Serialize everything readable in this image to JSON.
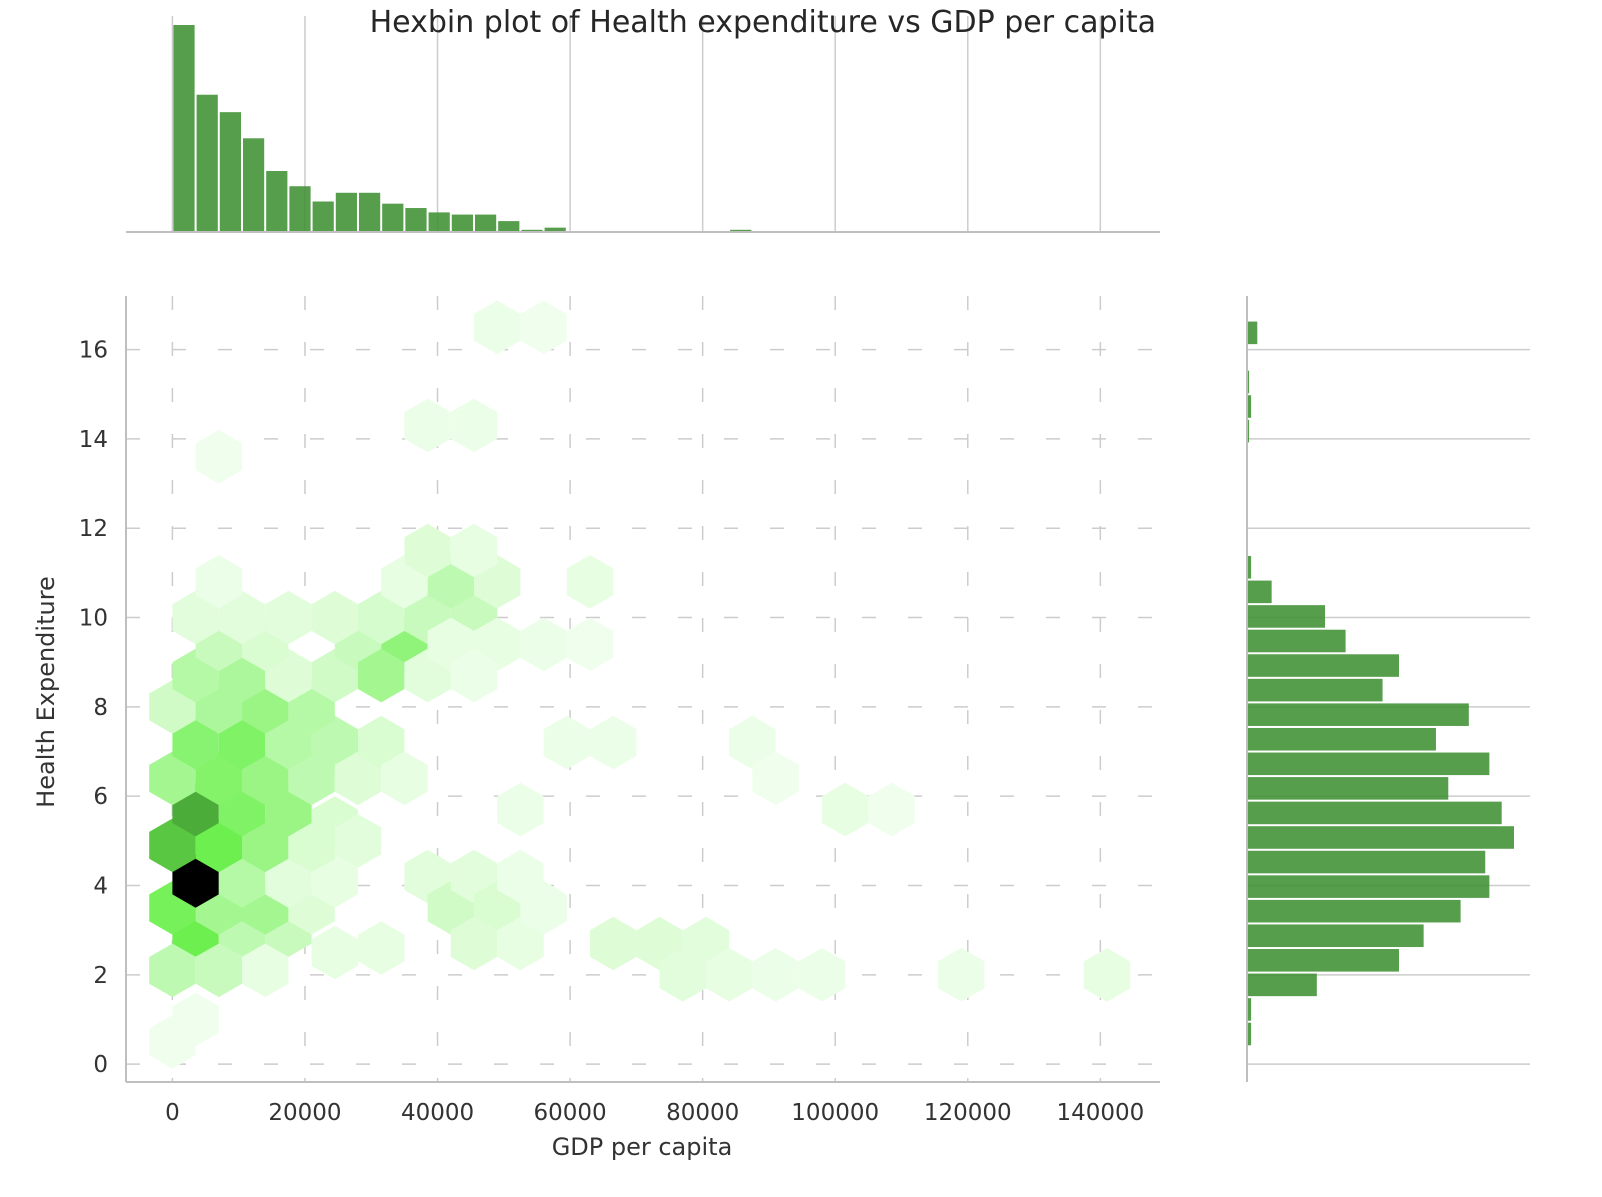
{
  "chart_data": {
    "type": "hexbin",
    "title": "Hexbin plot of Health expenditure vs GDP per capita",
    "xlabel": "GDP per capita",
    "ylabel": "Health Expenditure",
    "xlim": [
      -7000,
      149000
    ],
    "ylim": [
      -0.4,
      17.2
    ],
    "x_ticks": [
      0,
      20000,
      40000,
      60000,
      80000,
      100000,
      120000,
      140000
    ],
    "y_ticks": [
      0,
      2,
      4,
      6,
      8,
      10,
      12,
      14,
      16
    ],
    "x_tick_labels": [
      "0",
      "20000",
      "40000",
      "60000",
      "80000",
      "100000",
      "120000",
      "140000"
    ],
    "y_tick_labels": [
      "0",
      "2",
      "4",
      "6",
      "8",
      "10",
      "12",
      "14",
      "16"
    ],
    "grid": true,
    "hexbin": {
      "gridsize_note": "approximate hexagon grid",
      "max_count": 60,
      "bins": [
        {
          "x": 0,
          "y": 0.5,
          "count": 1
        },
        {
          "x": 3500,
          "y": 1.0,
          "count": 1
        },
        {
          "x": 0,
          "y": 2.1,
          "count": 12
        },
        {
          "x": 7000,
          "y": 2.1,
          "count": 10
        },
        {
          "x": 14000,
          "y": 2.1,
          "count": 3
        },
        {
          "x": 3500,
          "y": 3.0,
          "count": 30
        },
        {
          "x": 10500,
          "y": 3.0,
          "count": 12
        },
        {
          "x": 17500,
          "y": 3.0,
          "count": 10
        },
        {
          "x": 24500,
          "y": 2.5,
          "count": 3
        },
        {
          "x": 0,
          "y": 3.5,
          "count": 28
        },
        {
          "x": 7000,
          "y": 3.5,
          "count": 18
        },
        {
          "x": 14000,
          "y": 3.5,
          "count": 18
        },
        {
          "x": 21000,
          "y": 3.5,
          "count": 5
        },
        {
          "x": 3500,
          "y": 4.1,
          "count": 60
        },
        {
          "x": 10500,
          "y": 4.1,
          "count": 14
        },
        {
          "x": 17500,
          "y": 4.1,
          "count": 4
        },
        {
          "x": 24500,
          "y": 4.1,
          "count": 3
        },
        {
          "x": 0,
          "y": 4.9,
          "count": 36
        },
        {
          "x": 7000,
          "y": 4.9,
          "count": 30
        },
        {
          "x": 14000,
          "y": 4.9,
          "count": 20
        },
        {
          "x": 21000,
          "y": 4.9,
          "count": 6
        },
        {
          "x": 3500,
          "y": 5.7,
          "count": 40
        },
        {
          "x": 10500,
          "y": 5.7,
          "count": 26
        },
        {
          "x": 17500,
          "y": 5.7,
          "count": 20
        },
        {
          "x": 24500,
          "y": 5.4,
          "count": 6
        },
        {
          "x": 0,
          "y": 6.4,
          "count": 18
        },
        {
          "x": 7000,
          "y": 6.4,
          "count": 25
        },
        {
          "x": 14000,
          "y": 6.4,
          "count": 20
        },
        {
          "x": 21000,
          "y": 6.4,
          "count": 12
        },
        {
          "x": 3500,
          "y": 7.2,
          "count": 24
        },
        {
          "x": 10500,
          "y": 7.2,
          "count": 26
        },
        {
          "x": 17500,
          "y": 7.2,
          "count": 14
        },
        {
          "x": 24500,
          "y": 7.2,
          "count": 12
        },
        {
          "x": 0,
          "y": 8.0,
          "count": 8
        },
        {
          "x": 7000,
          "y": 8.0,
          "count": 16
        },
        {
          "x": 14000,
          "y": 8.0,
          "count": 20
        },
        {
          "x": 21000,
          "y": 8.0,
          "count": 14
        },
        {
          "x": 3500,
          "y": 8.7,
          "count": 14
        },
        {
          "x": 10500,
          "y": 8.7,
          "count": 16
        },
        {
          "x": 17500,
          "y": 8.7,
          "count": 5
        },
        {
          "x": 24500,
          "y": 8.7,
          "count": 8
        },
        {
          "x": 7000,
          "y": 9.4,
          "count": 10
        },
        {
          "x": 14000,
          "y": 9.4,
          "count": 6
        },
        {
          "x": 28000,
          "y": 9.4,
          "count": 10
        },
        {
          "x": 35000,
          "y": 9.4,
          "count": 22
        },
        {
          "x": 31500,
          "y": 8.7,
          "count": 18
        },
        {
          "x": 38500,
          "y": 8.7,
          "count": 4
        },
        {
          "x": 3500,
          "y": 10.0,
          "count": 4
        },
        {
          "x": 10500,
          "y": 10.0,
          "count": 4
        },
        {
          "x": 17500,
          "y": 10.0,
          "count": 4
        },
        {
          "x": 24500,
          "y": 10.0,
          "count": 5
        },
        {
          "x": 31500,
          "y": 10.0,
          "count": 7
        },
        {
          "x": 38500,
          "y": 10.0,
          "count": 10
        },
        {
          "x": 45500,
          "y": 10.0,
          "count": 10
        },
        {
          "x": 7000,
          "y": 10.8,
          "count": 2
        },
        {
          "x": 42000,
          "y": 10.8,
          "count": 12
        },
        {
          "x": 49000,
          "y": 10.8,
          "count": 5
        },
        {
          "x": 35000,
          "y": 10.8,
          "count": 3
        },
        {
          "x": 38500,
          "y": 11.5,
          "count": 5
        },
        {
          "x": 45500,
          "y": 11.5,
          "count": 3
        },
        {
          "x": 38500,
          "y": 14.3,
          "count": 2
        },
        {
          "x": 45500,
          "y": 14.3,
          "count": 2
        },
        {
          "x": 49000,
          "y": 16.5,
          "count": 2
        },
        {
          "x": 56000,
          "y": 16.5,
          "count": 1
        },
        {
          "x": 7000,
          "y": 13.6,
          "count": 1
        },
        {
          "x": 28000,
          "y": 5.0,
          "count": 4
        },
        {
          "x": 28000,
          "y": 6.4,
          "count": 5
        },
        {
          "x": 31500,
          "y": 7.2,
          "count": 6
        },
        {
          "x": 35000,
          "y": 6.4,
          "count": 3
        },
        {
          "x": 31500,
          "y": 2.6,
          "count": 3
        },
        {
          "x": 38500,
          "y": 4.2,
          "count": 4
        },
        {
          "x": 42000,
          "y": 3.5,
          "count": 8
        },
        {
          "x": 45500,
          "y": 4.2,
          "count": 4
        },
        {
          "x": 49000,
          "y": 3.5,
          "count": 6
        },
        {
          "x": 45500,
          "y": 2.7,
          "count": 5
        },
        {
          "x": 52500,
          "y": 2.7,
          "count": 3
        },
        {
          "x": 52500,
          "y": 4.2,
          "count": 2
        },
        {
          "x": 56000,
          "y": 3.5,
          "count": 2
        },
        {
          "x": 42000,
          "y": 9.4,
          "count": 3
        },
        {
          "x": 49000,
          "y": 9.4,
          "count": 3
        },
        {
          "x": 45500,
          "y": 8.7,
          "count": 2
        },
        {
          "x": 56000,
          "y": 9.4,
          "count": 2
        },
        {
          "x": 63000,
          "y": 10.8,
          "count": 3
        },
        {
          "x": 63000,
          "y": 9.4,
          "count": 1
        },
        {
          "x": 66500,
          "y": 2.7,
          "count": 5
        },
        {
          "x": 73500,
          "y": 2.7,
          "count": 5
        },
        {
          "x": 80500,
          "y": 2.7,
          "count": 4
        },
        {
          "x": 77000,
          "y": 2.0,
          "count": 4
        },
        {
          "x": 84000,
          "y": 2.0,
          "count": 3
        },
        {
          "x": 91000,
          "y": 2.0,
          "count": 2
        },
        {
          "x": 98000,
          "y": 2.0,
          "count": 2
        },
        {
          "x": 119000,
          "y": 2.0,
          "count": 2
        },
        {
          "x": 141000,
          "y": 2.0,
          "count": 3
        },
        {
          "x": 59500,
          "y": 7.2,
          "count": 2
        },
        {
          "x": 66500,
          "y": 7.2,
          "count": 2
        },
        {
          "x": 87500,
          "y": 7.2,
          "count": 2
        },
        {
          "x": 91000,
          "y": 6.4,
          "count": 1
        },
        {
          "x": 101500,
          "y": 5.7,
          "count": 3
        },
        {
          "x": 108500,
          "y": 5.7,
          "count": 1
        },
        {
          "x": 52500,
          "y": 5.7,
          "count": 2
        }
      ]
    },
    "x_marginal_histogram": {
      "bin_width": 3500,
      "start": 0,
      "counts": [
        95,
        63,
        55,
        43,
        28,
        21,
        14,
        18,
        18,
        13,
        11,
        9,
        8,
        8,
        5,
        1,
        2,
        0,
        0,
        0,
        0,
        0,
        0,
        0,
        1,
        0,
        0,
        0,
        0,
        0,
        0,
        0,
        0,
        0,
        0,
        0,
        0,
        0,
        0,
        0
      ]
    },
    "y_marginal_histogram": {
      "bin_width": 0.55,
      "bins": [
        {
          "y0": 0.4,
          "count": 1
        },
        {
          "y0": 0.95,
          "count": 1
        },
        {
          "y0": 1.5,
          "count": 17
        },
        {
          "y0": 2.05,
          "count": 37
        },
        {
          "y0": 2.6,
          "count": 43
        },
        {
          "y0": 3.15,
          "count": 52
        },
        {
          "y0": 3.7,
          "count": 59
        },
        {
          "y0": 4.25,
          "count": 58
        },
        {
          "y0": 4.8,
          "count": 65
        },
        {
          "y0": 5.35,
          "count": 62
        },
        {
          "y0": 5.9,
          "count": 49
        },
        {
          "y0": 6.45,
          "count": 59
        },
        {
          "y0": 7.0,
          "count": 46
        },
        {
          "y0": 7.55,
          "count": 54
        },
        {
          "y0": 8.1,
          "count": 33
        },
        {
          "y0": 8.65,
          "count": 37
        },
        {
          "y0": 9.2,
          "count": 24
        },
        {
          "y0": 9.75,
          "count": 19
        },
        {
          "y0": 10.3,
          "count": 6
        },
        {
          "y0": 10.85,
          "count": 1
        },
        {
          "y0": 13.9,
          "count": 0.5
        },
        {
          "y0": 14.45,
          "count": 1
        },
        {
          "y0": 15.0,
          "count": 0.5
        },
        {
          "y0": 16.1,
          "count": 2.5
        }
      ]
    },
    "colors": {
      "hist": "#3f8f33",
      "hex_low": "#f4fff2",
      "hex_mid": "#6df04f",
      "hex_high": "#3c8a2e",
      "hex_max": "#000000",
      "grid": "#cccccc",
      "axis": "#bfbfbf"
    }
  }
}
